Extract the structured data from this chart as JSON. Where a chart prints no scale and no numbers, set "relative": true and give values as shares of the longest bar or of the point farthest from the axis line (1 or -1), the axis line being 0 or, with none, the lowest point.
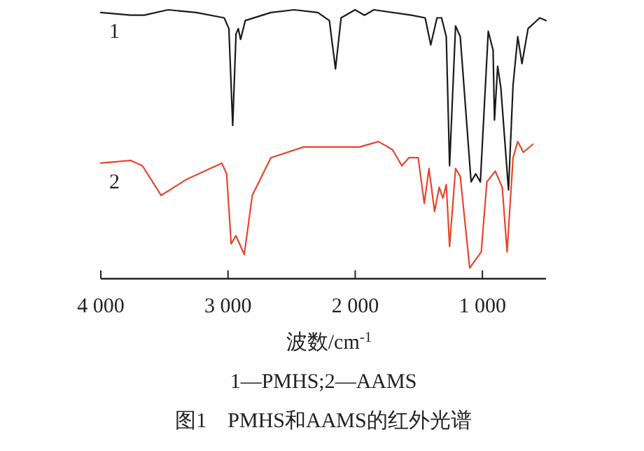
{
  "chart_data": {
    "type": "line",
    "relative": true,
    "title": "图1　PMHS和AAMS的红外光谱",
    "xlabel": "波数/cm$^{-1}$",
    "annotations": [
      "1—PMHS;2—AAMS"
    ],
    "xlim": [
      4000,
      500
    ],
    "xticks": [
      {
        "value": 4000,
        "label": "4 000"
      },
      {
        "value": 3000,
        "label": "3 000"
      },
      {
        "value": 2000,
        "label": "2 000"
      },
      {
        "value": 1000,
        "label": "1 000"
      }
    ],
    "grid": false,
    "legend": false,
    "line_style": "solid",
    "marker": "none",
    "series": [
      {
        "name": "1",
        "color": "#1a1a1a",
        "x": [
          4000,
          3765,
          3658,
          3471,
          3250,
          3030,
          2993,
          2963,
          2937,
          2919,
          2901,
          2864,
          2663,
          2479,
          2294,
          2203,
          2155,
          2111,
          2001,
          1927,
          1853,
          1560,
          1450,
          1406,
          1357,
          1321,
          1284,
          1258,
          1211,
          1174,
          1089,
          1053,
          1016,
          954,
          916,
          905,
          880,
          855,
          795,
          759,
          722,
          689,
          641,
          549,
          500
        ],
        "values": [
          0.99,
          0.98,
          0.98,
          1.0,
          0.99,
          0.97,
          0.93,
          0.57,
          0.91,
          0.93,
          0.89,
          0.96,
          0.99,
          1.0,
          0.99,
          0.96,
          0.78,
          0.97,
          1.0,
          0.98,
          1.0,
          0.98,
          0.97,
          0.87,
          0.97,
          0.97,
          0.9,
          0.42,
          0.94,
          0.9,
          0.36,
          0.39,
          0.36,
          0.92,
          0.85,
          0.59,
          0.79,
          0.71,
          0.33,
          0.72,
          0.9,
          0.8,
          0.93,
          0.97,
          0.96
        ]
      },
      {
        "name": "2",
        "color": "#e8452c",
        "x": [
          4000,
          3765,
          3673,
          3526,
          3324,
          3049,
          3011,
          2975,
          2938,
          2872,
          2809,
          2663,
          2405,
          1964,
          1817,
          1707,
          1633,
          1578,
          1505,
          1457,
          1420,
          1376,
          1340,
          1310,
          1284,
          1258,
          1211,
          1174,
          1100,
          1009,
          965,
          899,
          844,
          806,
          759,
          722,
          678,
          604
        ],
        "values": [
          0.43,
          0.44,
          0.42,
          0.31,
          0.37,
          0.43,
          0.39,
          0.13,
          0.16,
          0.09,
          0.31,
          0.45,
          0.49,
          0.49,
          0.51,
          0.48,
          0.42,
          0.45,
          0.45,
          0.28,
          0.41,
          0.25,
          0.34,
          0.3,
          0.35,
          0.12,
          0.41,
          0.38,
          0.04,
          0.1,
          0.36,
          0.4,
          0.34,
          0.1,
          0.45,
          0.51,
          0.47,
          0.5
        ]
      }
    ]
  }
}
